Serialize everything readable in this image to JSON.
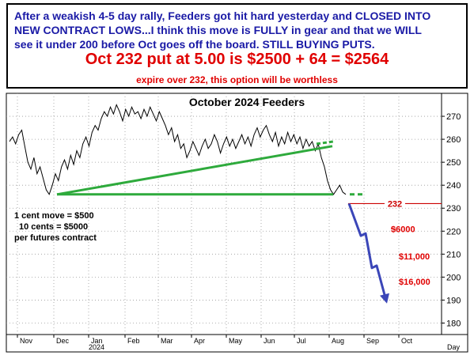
{
  "header": {
    "lines": [
      "After a weakish 4-5 day rally, Feeders got hit hard yesterday and CLOSED INTO",
      "NEW CONTRACT LOWS...I think this move is FULLY in gear and that we WILL",
      "see it under 200 before Oct goes off the board. STILL BUYING PUTS."
    ],
    "headline": "Oct 232 put at 5.00 is $2500 + 64 = $2564",
    "subline": "expire over 232, this option will be worthless"
  },
  "chart_data": {
    "type": "line",
    "title": "October 2024 Feeders",
    "ylim": [
      175,
      280
    ],
    "y_ticks": [
      180,
      190,
      200,
      210,
      220,
      230,
      240,
      250,
      260,
      270
    ],
    "x_ticks": [
      "Nov",
      "Dec",
      "Jan",
      "Feb",
      "Mar",
      "Apr",
      "May",
      "Jun",
      "Jul",
      "Aug",
      "Sep",
      "Oct"
    ],
    "x_year_label": "2024",
    "x_axis_unit": "Day",
    "series": [
      {
        "values": [
          259,
          261,
          258,
          262,
          264,
          257,
          250,
          247,
          252,
          245,
          248,
          243,
          238,
          236,
          240,
          245,
          242,
          248,
          251,
          247,
          253,
          249,
          255,
          252,
          258,
          261,
          257,
          263,
          266,
          264,
          269,
          272,
          270,
          274,
          271,
          275,
          272,
          268,
          273,
          270,
          274,
          271,
          272,
          269,
          273,
          270,
          274,
          271,
          268,
          272,
          269,
          266,
          262,
          265,
          259,
          262,
          256,
          258,
          252,
          255,
          259,
          256,
          253,
          257,
          260,
          256,
          258,
          262,
          259,
          254,
          258,
          261,
          257,
          260,
          256,
          259,
          262,
          258,
          261,
          257,
          262,
          265,
          261,
          264,
          266,
          262,
          259,
          263,
          257,
          261,
          258,
          263,
          259,
          262,
          258,
          261,
          256,
          260,
          257,
          259,
          255,
          258,
          252,
          248,
          242,
          238,
          236,
          238,
          240,
          237,
          236
        ]
      }
    ],
    "annotations": {
      "contract_info": [
        "1 cent move = $500",
        "10 cents = $5000",
        "per futures contract"
      ],
      "strike_label": "232",
      "profit_labels": [
        "$6000",
        "$11,000",
        "$16,000"
      ],
      "trendline_color": "#2eaa3c",
      "strike_color": "#cc0000",
      "projection_color": "#3b46b8",
      "profit_color": "#e00000"
    }
  }
}
